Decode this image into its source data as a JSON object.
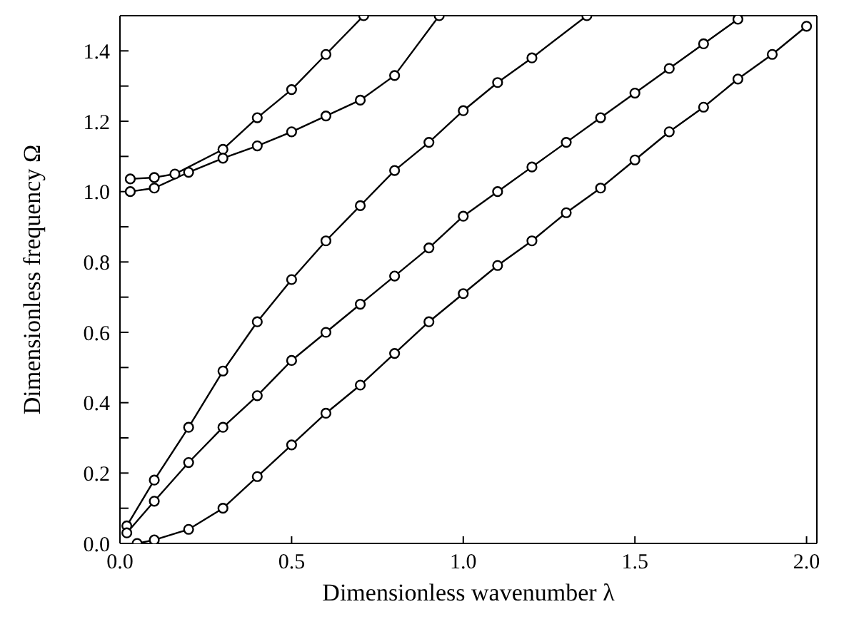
{
  "chart_data": {
    "type": "line",
    "xlabel": "Dimensionless wavenumber λ",
    "ylabel": "Dimensionless frequency Ω",
    "xlim": [
      0,
      2.03
    ],
    "xticks": [
      {
        "value": 0,
        "label": "0.0"
      },
      {
        "value": 0.5,
        "label": "0.5"
      },
      {
        "value": 1,
        "label": "1.0"
      },
      {
        "value": 1.5,
        "label": "1.5"
      },
      {
        "value": 2,
        "label": "2.0"
      }
    ],
    "ylim": [
      0,
      1.5
    ],
    "yticks": [
      {
        "value": 0,
        "label": "0.0"
      },
      {
        "value": 0.1,
        "label": null
      },
      {
        "value": 0.2,
        "label": "0.2"
      },
      {
        "value": 0.3,
        "label": null
      },
      {
        "value": 0.4,
        "label": "0.4"
      },
      {
        "value": 0.5,
        "label": null
      },
      {
        "value": 0.6,
        "label": "0.6"
      },
      {
        "value": 0.7,
        "label": null
      },
      {
        "value": 0.8,
        "label": "0.8"
      },
      {
        "value": 0.9,
        "label": null
      },
      {
        "value": 1,
        "label": "1.0"
      },
      {
        "value": 1.1,
        "label": null
      },
      {
        "value": 1.2,
        "label": "1.2"
      },
      {
        "value": 1.3,
        "label": null
      },
      {
        "value": 1.4,
        "label": "1.4"
      }
    ],
    "legend": false,
    "marker": "circle",
    "line_style": "solid",
    "series": [
      {
        "color": "#000000",
        "x": [
          0.03,
          0.1,
          0.16,
          0.3,
          0.4,
          0.5,
          0.6,
          0.71
        ],
        "values": [
          1.036,
          1.04,
          1.05,
          1.12,
          1.21,
          1.29,
          1.39,
          1.5
        ]
      },
      {
        "color": "#000000",
        "x": [
          0.03,
          0.1,
          0.2,
          0.3,
          0.4,
          0.5,
          0.6,
          0.7,
          0.8,
          0.93
        ],
        "values": [
          1.0,
          1.01,
          1.055,
          1.095,
          1.13,
          1.17,
          1.215,
          1.26,
          1.33,
          1.5
        ]
      },
      {
        "color": "#000000",
        "x": [
          0.02,
          0.1,
          0.2,
          0.3,
          0.4,
          0.5,
          0.6,
          0.7,
          0.8,
          0.9,
          1.0,
          1.1,
          1.2,
          1.36
        ],
        "values": [
          0.05,
          0.18,
          0.33,
          0.49,
          0.63,
          0.75,
          0.86,
          0.96,
          1.06,
          1.14,
          1.23,
          1.31,
          1.38,
          1.5
        ]
      },
      {
        "color": "#000000",
        "x": [
          0.02,
          0.1,
          0.2,
          0.3,
          0.4,
          0.5,
          0.6,
          0.7,
          0.8,
          0.9,
          1.0,
          1.1,
          1.2,
          1.3,
          1.4,
          1.5,
          1.6,
          1.7,
          1.8
        ],
        "values": [
          0.03,
          0.12,
          0.23,
          0.33,
          0.42,
          0.52,
          0.6,
          0.68,
          0.76,
          0.84,
          0.93,
          1.0,
          1.07,
          1.14,
          1.21,
          1.28,
          1.35,
          1.42,
          1.49
        ]
      },
      {
        "color": "#000000",
        "x": [
          0.05,
          0.1,
          0.2,
          0.3,
          0.4,
          0.5,
          0.6,
          0.7,
          0.8,
          0.9,
          1.0,
          1.1,
          1.2,
          1.3,
          1.4,
          1.5,
          1.6,
          1.7,
          1.8,
          1.9,
          2.0
        ],
        "values": [
          0.0,
          0.01,
          0.04,
          0.1,
          0.19,
          0.28,
          0.37,
          0.45,
          0.54,
          0.63,
          0.71,
          0.79,
          0.86,
          0.94,
          1.01,
          1.09,
          1.17,
          1.24,
          1.32,
          1.39,
          1.47
        ]
      }
    ]
  }
}
